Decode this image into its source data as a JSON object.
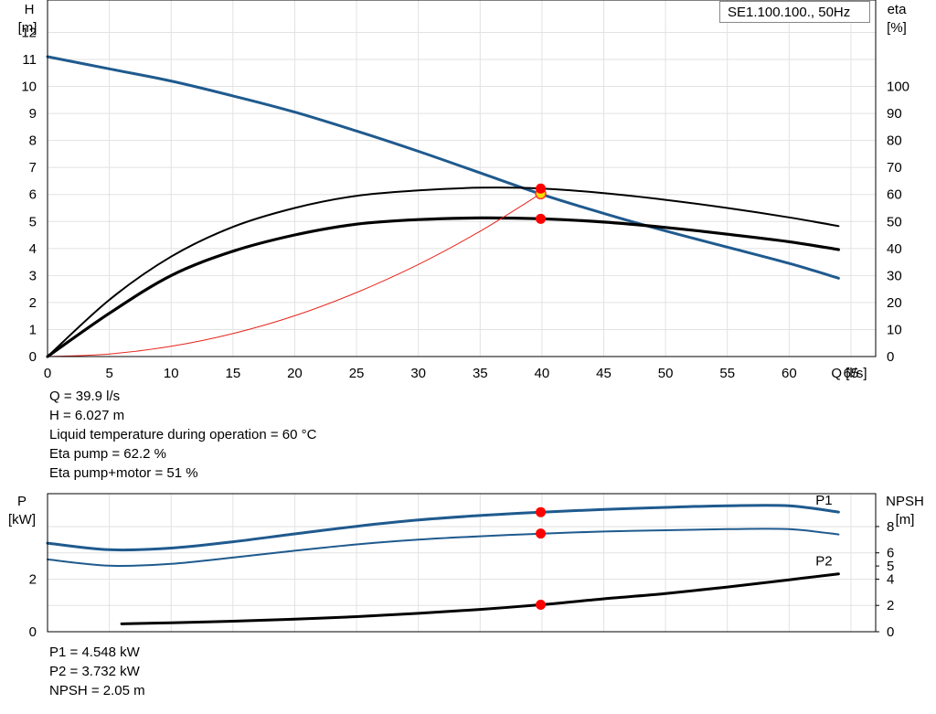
{
  "chart_data": [
    {
      "type": "line",
      "title": "SE1.100.100., 50Hz",
      "xlabel": "Q [l/s]",
      "ylabel_left": "H",
      "ylabel_left_unit": "[m]",
      "ylabel_right": "eta",
      "ylabel_right_unit": "[%]",
      "xlim": [
        0,
        67
      ],
      "ylim_left": [
        0,
        13.2
      ],
      "ylim_right": [
        0,
        132
      ],
      "x_ticks": [
        0,
        5,
        10,
        15,
        20,
        25,
        30,
        35,
        40,
        45,
        50,
        55,
        60,
        65
      ],
      "y_left_ticks": [
        0,
        1,
        2,
        3,
        4,
        5,
        6,
        7,
        8,
        9,
        10,
        11,
        12
      ],
      "y_right_ticks": [
        0,
        10,
        20,
        30,
        40,
        50,
        60,
        70,
        80,
        90,
        100
      ],
      "grid": true,
      "series": [
        {
          "key": "head",
          "axis": "left",
          "color": "#1f5a8e",
          "x": [
            0,
            5,
            10,
            15,
            20,
            25,
            30,
            35,
            40,
            45,
            50,
            55,
            60,
            64
          ],
          "y": [
            11.1,
            10.65,
            10.2,
            9.65,
            9.05,
            8.35,
            7.6,
            6.8,
            6.0,
            5.3,
            4.65,
            4.05,
            3.45,
            2.9
          ]
        },
        {
          "key": "eta_pump",
          "axis": "right",
          "color": "#000000",
          "x": [
            0,
            5,
            10,
            15,
            20,
            25,
            30,
            35,
            40,
            45,
            50,
            55,
            60,
            64
          ],
          "y": [
            0,
            21,
            37,
            48,
            55,
            59.5,
            61.5,
            62.5,
            62.2,
            60.5,
            58,
            55,
            51.5,
            48.3
          ]
        },
        {
          "key": "eta_total",
          "axis": "right",
          "color": "#000000",
          "x": [
            0,
            5,
            10,
            15,
            20,
            25,
            30,
            35,
            40,
            45,
            50,
            55,
            60,
            64
          ],
          "y": [
            0,
            16,
            30,
            39,
            45,
            49,
            50.7,
            51.3,
            51,
            49.8,
            47.8,
            45.3,
            42.5,
            39.6
          ]
        },
        {
          "key": "system",
          "axis": "left",
          "color": "#e8241c",
          "x": [
            0,
            5,
            10,
            15,
            20,
            25,
            30,
            35,
            39.9
          ],
          "y": [
            0,
            0.095,
            0.38,
            0.85,
            1.51,
            2.37,
            3.41,
            4.64,
            6.03
          ]
        }
      ],
      "operating_points": [
        {
          "x": 39.9,
          "y": 6.027,
          "axis": "left",
          "color": "#f0e000"
        },
        {
          "x": 39.9,
          "y": 62.2,
          "axis": "right",
          "color": "#ff0000"
        },
        {
          "x": 39.9,
          "y": 51,
          "axis": "right",
          "color": "#ff0000"
        }
      ]
    },
    {
      "type": "line",
      "ylabel_left": "P",
      "ylabel_left_unit": "[kW]",
      "ylabel_right": "NPSH",
      "ylabel_right_unit": "[m]",
      "xlim": [
        0,
        67
      ],
      "ylim_left": [
        0,
        5.25
      ],
      "ylim_right": [
        0,
        10.5
      ],
      "y_left_ticks": [
        0,
        2
      ],
      "y_right_ticks": [
        0,
        2,
        4,
        5,
        6,
        8
      ],
      "grid": true,
      "series": [
        {
          "key": "P1",
          "name": "P1",
          "axis": "left",
          "color": "#1f5a8e",
          "x": [
            0,
            5,
            10,
            15,
            20,
            25,
            30,
            35,
            40,
            45,
            50,
            55,
            60,
            64
          ],
          "y": [
            3.37,
            3.12,
            3.18,
            3.42,
            3.72,
            4.01,
            4.25,
            4.42,
            4.548,
            4.65,
            4.73,
            4.79,
            4.79,
            4.55
          ]
        },
        {
          "key": "P2",
          "name": "P2",
          "axis": "left",
          "color": "#1f5a8e",
          "x": [
            0,
            5,
            10,
            15,
            20,
            25,
            30,
            35,
            40,
            45,
            50,
            55,
            60,
            64
          ],
          "y": [
            2.75,
            2.51,
            2.58,
            2.82,
            3.08,
            3.32,
            3.5,
            3.63,
            3.732,
            3.81,
            3.86,
            3.9,
            3.9,
            3.7
          ]
        },
        {
          "key": "NPSH",
          "axis": "right",
          "color": "#000000",
          "x": [
            6,
            10,
            15,
            20,
            25,
            30,
            35,
            39.9,
            45,
            50,
            55,
            60,
            64
          ],
          "y": [
            0.6,
            0.68,
            0.8,
            0.95,
            1.15,
            1.4,
            1.7,
            2.05,
            2.5,
            2.9,
            3.4,
            3.95,
            4.4
          ]
        }
      ],
      "operating_points": [
        {
          "x": 39.9,
          "y": 4.548,
          "axis": "left",
          "color": "#ff0000"
        },
        {
          "x": 39.9,
          "y": 3.732,
          "axis": "left",
          "color": "#ff0000"
        },
        {
          "x": 39.9,
          "y": 2.05,
          "axis": "right",
          "color": "#ff0000"
        }
      ]
    }
  ],
  "readout_top": [
    "Q = 39.9 l/s",
    "H = 6.027 m",
    "Liquid temperature during operation = 60 °C",
    "Eta pump = 62.2 %",
    "Eta pump+motor = 51 %"
  ],
  "readout_bottom": [
    "P1 = 4.548 kW",
    "P2 = 3.732 kW",
    "NPSH = 2.05 m"
  ]
}
